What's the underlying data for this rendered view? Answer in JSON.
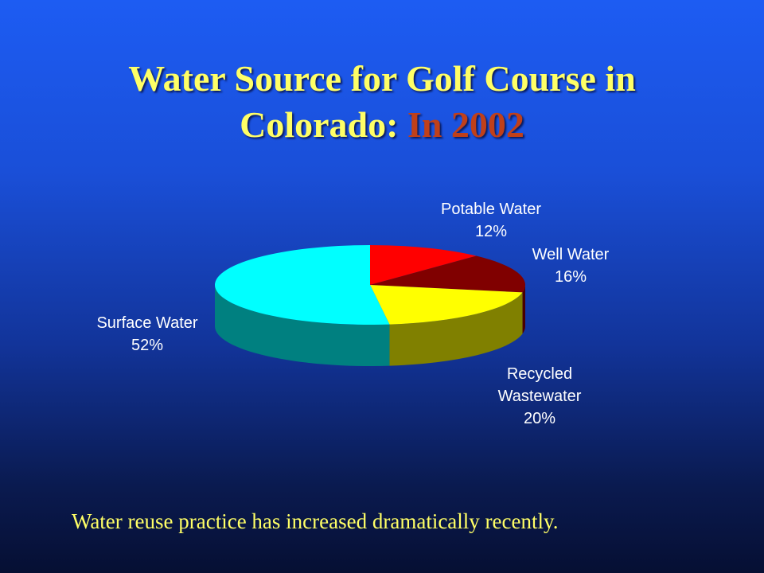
{
  "slide": {
    "title_main": "Water Source for Golf Course in",
    "title_line2": "Colorado:",
    "title_highlight": "In 2002",
    "caption": "Water reuse practice has increased dramatically recently."
  },
  "chart_data": {
    "type": "pie",
    "title": "Water Source for Golf Course in Colorado: In 2002",
    "slices": [
      {
        "name": "Potable Water",
        "value": 12,
        "label": "12%",
        "color": "#ff0000",
        "side_color": "#a00000"
      },
      {
        "name": "Well Water",
        "value": 16,
        "label": "16%",
        "color": "#800000",
        "side_color": "#4a0000"
      },
      {
        "name": "Recycled Wastewater",
        "value": 20,
        "label": "20%",
        "color": "#ffff00",
        "side_color": "#808000"
      },
      {
        "name": "Surface Water",
        "value": 52,
        "label": "52%",
        "color": "#00ffff",
        "side_color": "#008080"
      }
    ]
  }
}
